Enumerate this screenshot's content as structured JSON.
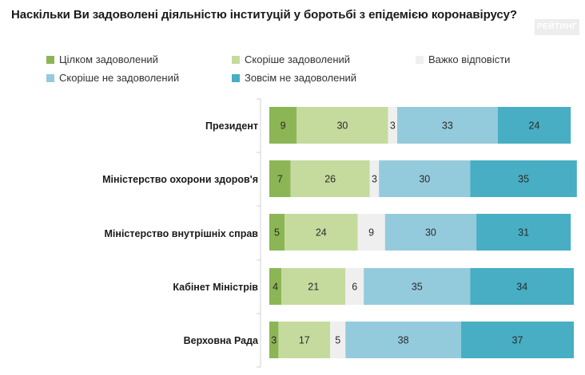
{
  "brand": "РЕЙТИНГ",
  "chart_data": {
    "type": "bar",
    "orientation": "horizontal",
    "stacked": true,
    "title": "Наскільки Ви задоволені діяльністю інституцій у боротьбі з епідемією коронавірусу?",
    "categories": [
      "Президент",
      "Міністерство охорони здоров'я",
      "Міністерство внутрішніх справ",
      "Кабінет Міністрів",
      "Верховна Рада"
    ],
    "series": [
      {
        "name": "Цілком задоволений",
        "color": "#8cb655",
        "values": [
          9,
          7,
          5,
          4,
          3
        ]
      },
      {
        "name": "Скоріше задоволений",
        "color": "#c5db9e",
        "values": [
          30,
          26,
          24,
          21,
          17
        ]
      },
      {
        "name": "Важко відповісти",
        "color": "#efefef",
        "values": [
          3,
          3,
          9,
          6,
          5
        ]
      },
      {
        "name": "Скоріше не задоволений",
        "color": "#94cbdc",
        "values": [
          33,
          30,
          30,
          35,
          38
        ]
      },
      {
        "name": "Зовсім не задоволений",
        "color": "#47aec3",
        "values": [
          24,
          35,
          31,
          34,
          37
        ]
      }
    ],
    "xlim": [
      0,
      100
    ]
  }
}
